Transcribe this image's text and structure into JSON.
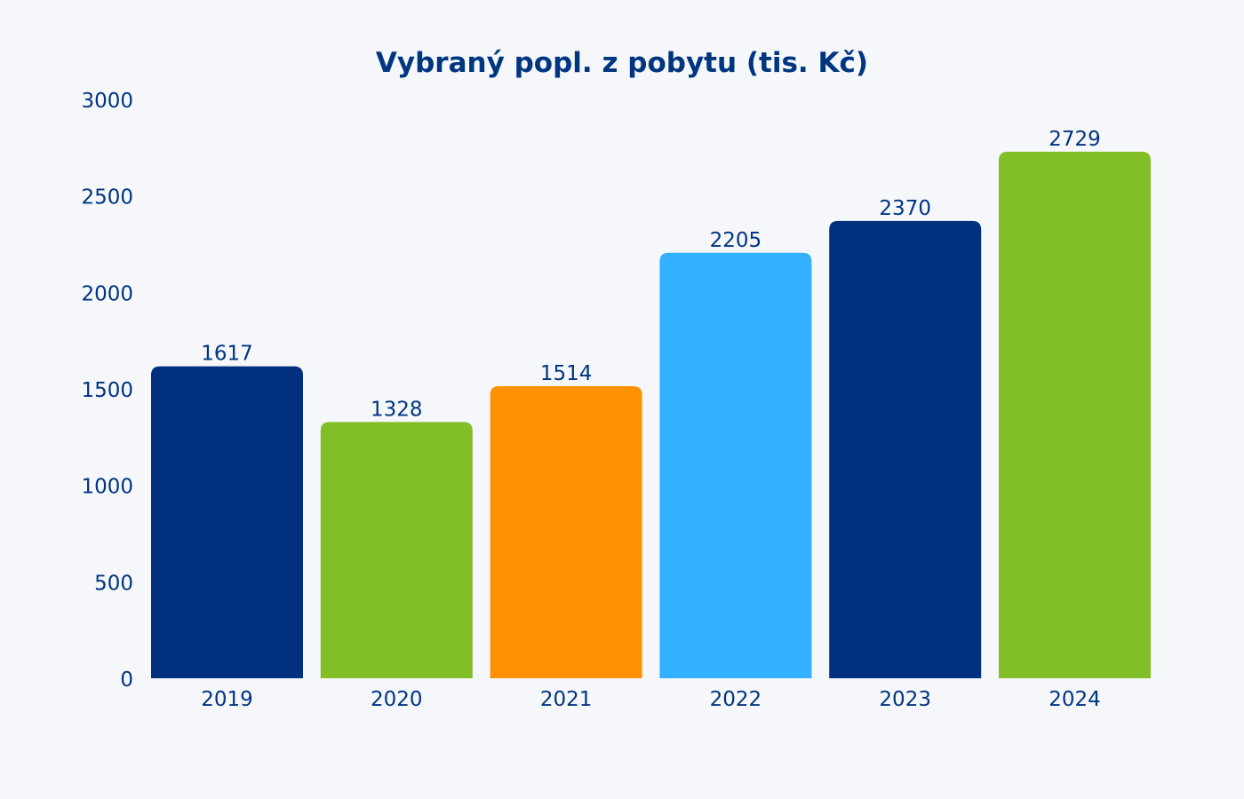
{
  "chart_data": {
    "type": "bar",
    "title": "Vybraný popl. z pobytu (tis. Kč)",
    "xlabel": "",
    "ylabel": "",
    "categories": [
      "2019",
      "2020",
      "2021",
      "2022",
      "2023",
      "2024"
    ],
    "values": [
      1617,
      1328,
      1514,
      2205,
      2370,
      2729
    ],
    "data_labels": [
      "1617",
      "1328",
      "1514",
      "2205",
      "2370",
      "2729"
    ],
    "bar_colors": [
      "#00307e",
      "#82bf26",
      "#ff9100",
      "#33b0ff",
      "#00307e",
      "#82bf26"
    ],
    "ylim": [
      0,
      3000
    ],
    "y_ticks": [
      0,
      500,
      1000,
      1500,
      2000,
      2500,
      3000
    ],
    "y_tick_labels": [
      "0",
      "500",
      "1000",
      "1500",
      "2000",
      "2500",
      "3000"
    ],
    "grid": false,
    "legend": "none",
    "text_color": "#003580",
    "background": "#f5f7fb"
  }
}
